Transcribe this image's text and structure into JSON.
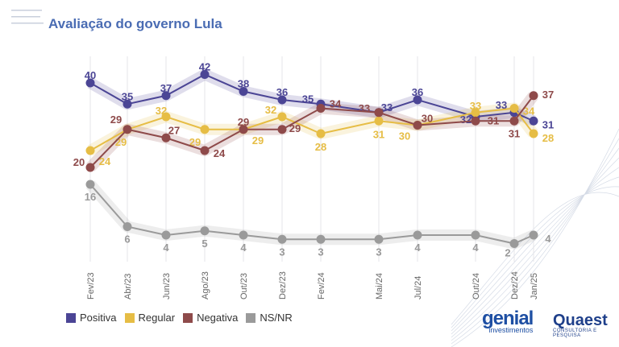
{
  "title": "Avaliação do governo Lula",
  "chart_data": {
    "type": "line",
    "title": "Avaliação do governo Lula",
    "categories": [
      "Fev/23",
      "Abr/23",
      "Jun/23",
      "Ago/23",
      "Out/23",
      "Dez/23",
      "Fev/24",
      "Mai/24",
      "Jul/24",
      "Out/24",
      "Dez/24",
      "Jan/25"
    ],
    "series": [
      {
        "name": "Positiva",
        "color": "#4b4595",
        "values": [
          40,
          35,
          37,
          42,
          38,
          36,
          35,
          33,
          36,
          32,
          33,
          31
        ]
      },
      {
        "name": "Regular",
        "color": "#e6bd45",
        "values": [
          24,
          29,
          32,
          29,
          29,
          32,
          28,
          31,
          30,
          33,
          34,
          28
        ]
      },
      {
        "name": "Negativa",
        "color": "#8e4a4a",
        "values": [
          20,
          29,
          27,
          24,
          29,
          29,
          34,
          33,
          30,
          31,
          31,
          37
        ]
      },
      {
        "name": "NS/NR",
        "color": "#9a9a9a",
        "values": [
          16,
          6,
          4,
          5,
          4,
          3,
          3,
          3,
          4,
          4,
          2,
          4
        ]
      }
    ],
    "ylabel": "",
    "xlabel": "",
    "grid": "vertical",
    "legend": "bottom-left"
  },
  "logos": {
    "genial": "genial",
    "genial_sub": "investimentos",
    "quaest": "Quaest",
    "quaest_sub": "CONSULTORIA E PESQUISA"
  }
}
